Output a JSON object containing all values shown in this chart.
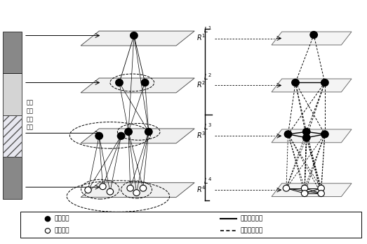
{
  "bg_color": "#ffffff",
  "legend_filled_label": "混合邻域",
  "legend_open_label": "单一邻域",
  "legend_solid_label": "层内邻域交互",
  "legend_dashed_label": "层间邻域级联",
  "left_text": "邻域\n半径\n分配\n矩阵",
  "panel_strips": [
    {
      "color": "#888888",
      "hatch": null
    },
    {
      "color": "#d8d8d8",
      "hatch": null
    },
    {
      "color": "#e8e8f0",
      "hatch": "///"
    },
    {
      "color": "#aaaaaa",
      "hatch": null
    }
  ],
  "left_layers": [
    {
      "y": 5.9,
      "label": "1"
    },
    {
      "y": 4.55,
      "label": "2"
    },
    {
      "y": 3.1,
      "label": "3"
    },
    {
      "y": 1.55,
      "label": "4"
    }
  ],
  "right_layers": [
    {
      "y": 5.9,
      "label": "1"
    },
    {
      "y": 4.55,
      "label": "2"
    },
    {
      "y": 3.1,
      "label": "3"
    },
    {
      "y": 1.55,
      "label": "4"
    }
  ]
}
